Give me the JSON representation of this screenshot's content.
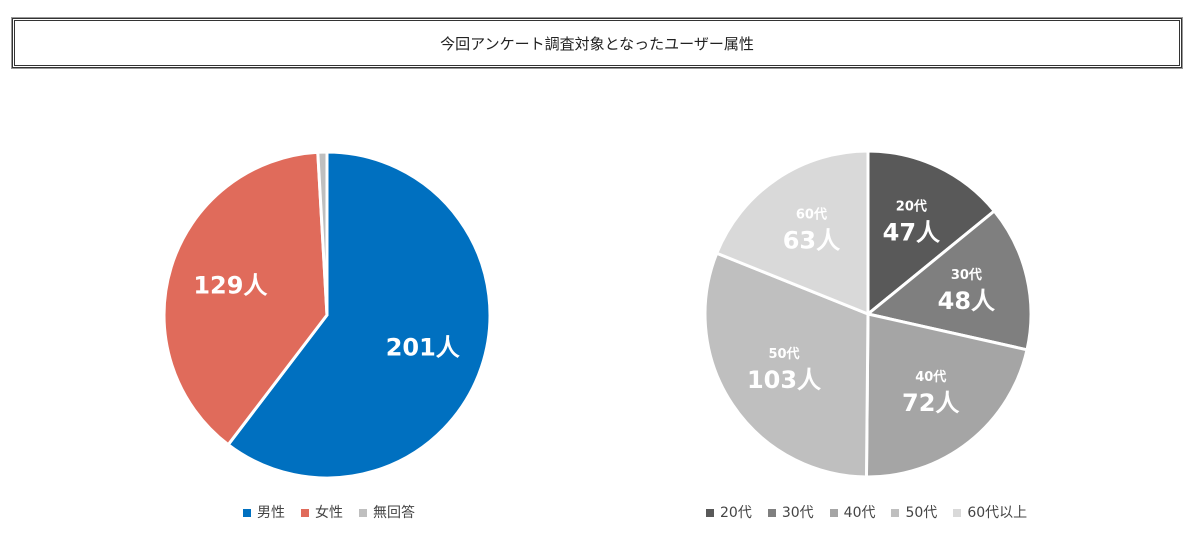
{
  "title": "今回アンケート調査対象となったユーザー属性",
  "chart_data": [
    {
      "type": "pie",
      "title": "",
      "categories": [
        "男性",
        "女性",
        "無回答"
      ],
      "values": [
        201,
        129,
        3
      ],
      "labels": [
        "201人",
        "129人",
        ""
      ],
      "colors": [
        "#0070C0",
        "#E06B5B",
        "#BFBFBF"
      ],
      "start": "top",
      "direction": "clockwise",
      "legend": "bottom"
    },
    {
      "type": "pie",
      "title": "",
      "categories": [
        "20代",
        "30代",
        "40代",
        "50代",
        "60代以上"
      ],
      "values": [
        47,
        48,
        72,
        103,
        63
      ],
      "slice_labels": [
        "20代",
        "30代",
        "40代",
        "50代",
        "60代"
      ],
      "labels": [
        "47人",
        "48人",
        "72人",
        "103人",
        "63人"
      ],
      "colors": [
        "#595959",
        "#7F7F7F",
        "#A5A5A5",
        "#BFBFBF",
        "#D9D9D9"
      ],
      "start": "top",
      "direction": "clockwise",
      "legend": "bottom"
    }
  ]
}
